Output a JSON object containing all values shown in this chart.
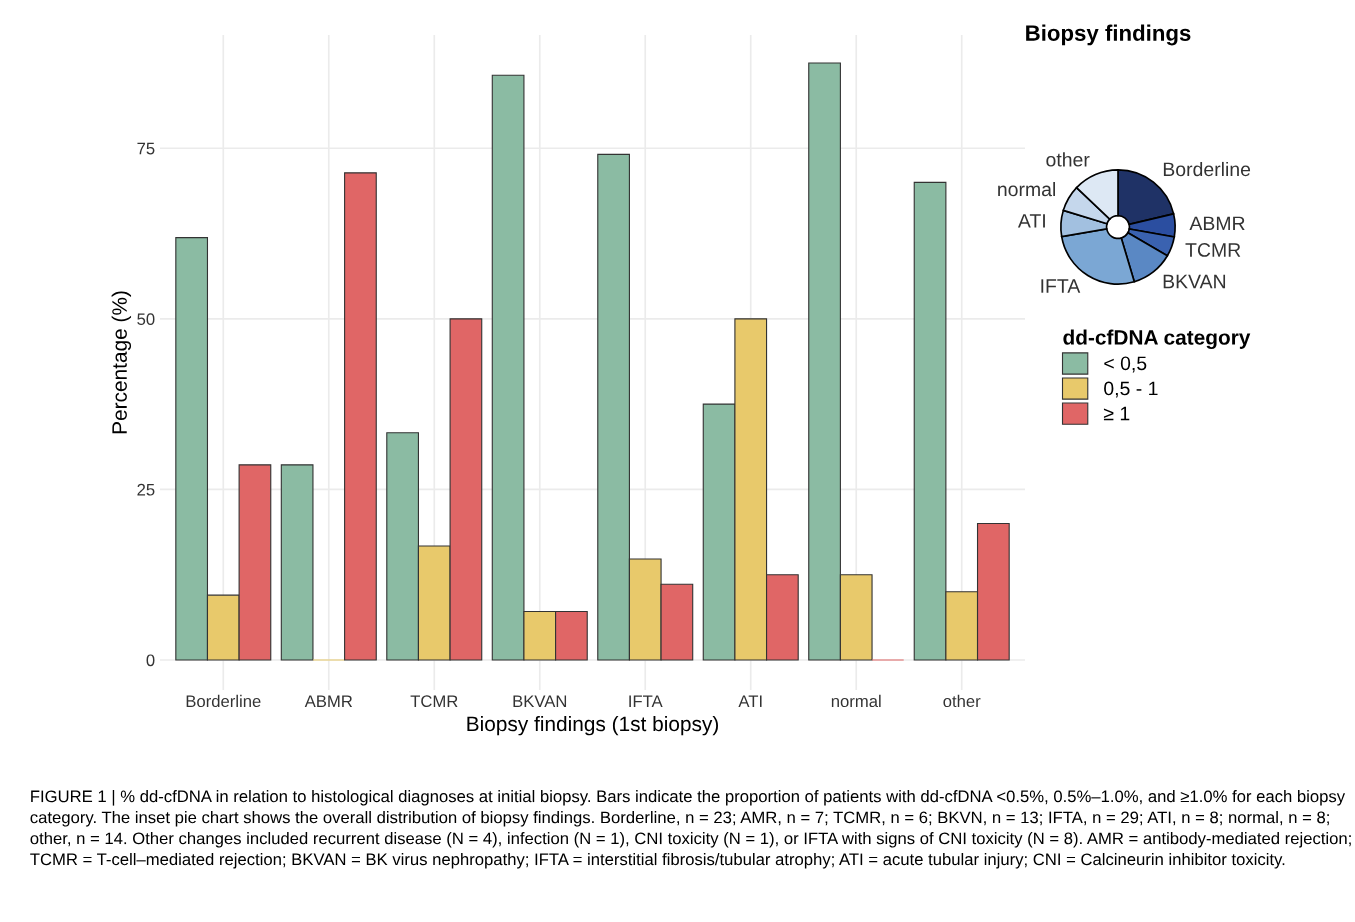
{
  "chart_data": [
    {
      "type": "bar",
      "xlabel": "Biopsy findings (1st biopsy)",
      "ylabel": "Percentage (%)",
      "legend_title": "dd-cfDNA category",
      "categories": [
        "Borderline",
        "ABMR",
        "TCMR",
        "BKVAN",
        "IFTA",
        "ATI",
        "normal",
        "other"
      ],
      "series": [
        {
          "name": "< 0,5",
          "color": "#8bbba3",
          "values": [
            61.9,
            28.6,
            33.3,
            85.7,
            74.1,
            37.5,
            87.5,
            70.0
          ]
        },
        {
          "name": "0,5 - 1",
          "color": "#e8c96b",
          "values": [
            9.5,
            0,
            16.7,
            7.1,
            14.8,
            50.0,
            12.5,
            10.0
          ]
        },
        {
          "name": "≥ 1",
          "color": "#e06666",
          "values": [
            28.6,
            71.4,
            50.0,
            7.1,
            11.1,
            12.5,
            0,
            20.0
          ]
        }
      ],
      "ylim": [
        -4.4,
        91.6
      ],
      "yticks": [
        0,
        25,
        50,
        75
      ],
      "grid": true,
      "legend": "right",
      "annotations": [
        "FIGURE 1 | % dd-cfDNA in relation to histological diagnoses at initial biopsy. Bars indicate the proportion of patients with dd-cfDNA <0.5%, 0.5%–1.0%, and ≥1.0% for each biopsy category. The inset pie chart shows the overall distribution of biopsy findings. Borderline, n = 23; AMR, n = 7; TCMR, n = 6; BKVN, n = 13; IFTA, n = 29; ATI, n = 8; normal, n = 8; other, n = 14. Other changes included recurrent disease (N = 4), infection (N = 1), CNI toxicity (N = 1), or IFTA with signs of CNI toxicity (N = 8). AMR = antibody-mediated rejection; TCMR = T-cell–mediated rejection; BKVAN = BK virus nephropathy; IFTA = interstitial fibrosis/tubular atrophy; ATI = acute tubular injury; CNI = Calcineurin inhibitor toxicity."
      ]
    },
    {
      "type": "donut",
      "title": "Biopsy findings",
      "categories": [
        "Borderline",
        "ABMR",
        "TCMR",
        "BKVAN",
        "IFTA",
        "ATI",
        "normal",
        "other"
      ],
      "values": [
        21.3,
        6.5,
        5.6,
        12.0,
        26.9,
        7.4,
        7.4,
        12.9
      ],
      "colors": [
        "#1f3266",
        "#2b4ea0",
        "#3a62b0",
        "#5a88c4",
        "#7ba7d4",
        "#a2c0e0",
        "#c5d7ec",
        "#dde8f4"
      ]
    }
  ]
}
